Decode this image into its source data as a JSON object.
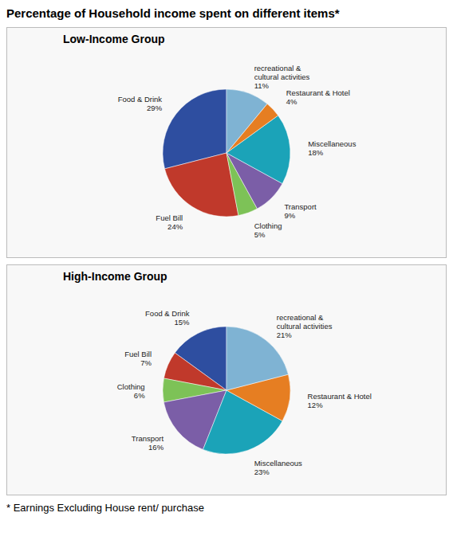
{
  "title": "Percentage of Household income spent on different items*",
  "annotations": [
    "* Earnings Excluding House rent/ purchase"
  ],
  "chart_data": [
    {
      "type": "pie",
      "title": "Low-Income Group",
      "categories": [
        "Food & Drink",
        "Fuel Bill",
        "Clothing",
        "Transport",
        "Miscellaneous",
        "Restaurant & Hotel",
        "recreational &\ncultural activities"
      ],
      "values": [
        29,
        24,
        5,
        9,
        18,
        4,
        11
      ],
      "value_labels": [
        "29%",
        "24%",
        "5%",
        "9%",
        "18%",
        "4%",
        "11%"
      ],
      "colors": [
        "#2E4EA0",
        "#C0392B",
        "#7DC257",
        "#7B5EA7",
        "#1BA3B8",
        "#E67E22",
        "#7FB3D3"
      ],
      "data_labels": true
    },
    {
      "type": "pie",
      "title": "High-Income Group",
      "categories": [
        "Food & Drink",
        "Fuel Bill",
        "Clothing",
        "Transport",
        "Miscellaneous",
        "Restaurant & Hotel",
        "recreational &\ncultural activities"
      ],
      "values": [
        15,
        7,
        6,
        16,
        23,
        12,
        21
      ],
      "value_labels": [
        "15%",
        "7%",
        "6%",
        "16%",
        "23%",
        "12%",
        "21%"
      ],
      "colors": [
        "#2E4EA0",
        "#C0392B",
        "#7DC257",
        "#7B5EA7",
        "#1BA3B8",
        "#E67E22",
        "#7FB3D3"
      ],
      "data_labels": true
    }
  ]
}
